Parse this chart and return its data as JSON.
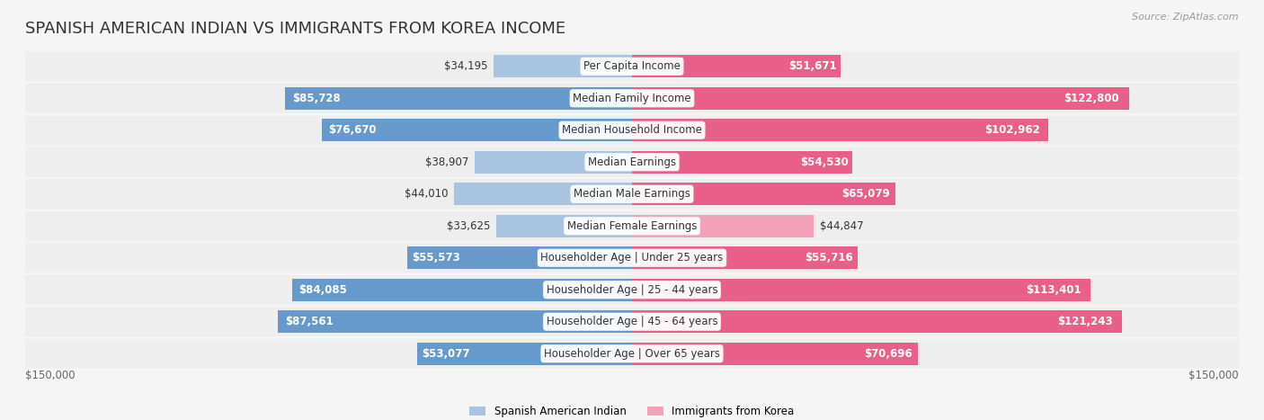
{
  "title": "SPANISH AMERICAN INDIAN VS IMMIGRANTS FROM KOREA INCOME",
  "source": "Source: ZipAtlas.com",
  "categories": [
    "Per Capita Income",
    "Median Family Income",
    "Median Household Income",
    "Median Earnings",
    "Median Male Earnings",
    "Median Female Earnings",
    "Householder Age | Under 25 years",
    "Householder Age | 25 - 44 years",
    "Householder Age | 45 - 64 years",
    "Householder Age | Over 65 years"
  ],
  "left_values": [
    34195,
    85728,
    76670,
    38907,
    44010,
    33625,
    55573,
    84085,
    87561,
    53077
  ],
  "right_values": [
    51671,
    122800,
    102962,
    54530,
    65079,
    44847,
    55716,
    113401,
    121243,
    70696
  ],
  "left_labels": [
    "$34,195",
    "$85,728",
    "$76,670",
    "$38,907",
    "$44,010",
    "$33,625",
    "$55,573",
    "$84,085",
    "$87,561",
    "$53,077"
  ],
  "right_labels": [
    "$51,671",
    "$122,800",
    "$102,962",
    "$54,530",
    "$65,079",
    "$44,847",
    "$55,716",
    "$113,401",
    "$121,243",
    "$70,696"
  ],
  "left_color_light": "#a8c4e0",
  "left_color_dark": "#6699cc",
  "right_color_light": "#f4a0b8",
  "right_color_dark": "#e8608a",
  "max_value": 150000,
  "legend_left": "Spanish American Indian",
  "legend_right": "Immigrants from Korea",
  "bg_color": "#f5f5f5",
  "row_bg_color": "#ffffff",
  "row_alt_bg_color": "#f0f0f0",
  "title_fontsize": 13,
  "label_fontsize": 8.5,
  "source_fontsize": 8
}
